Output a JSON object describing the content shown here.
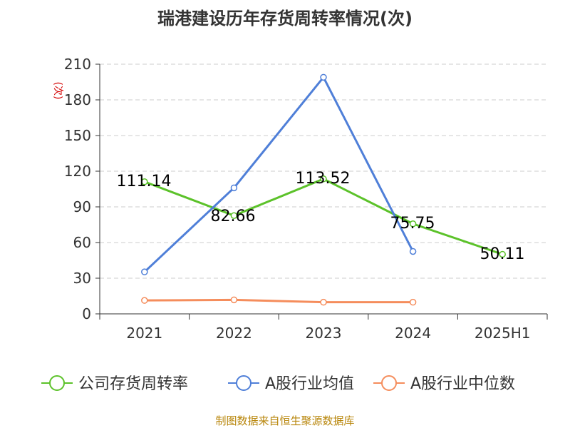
{
  "chart_data": {
    "type": "line",
    "title": "瑞港建设历年存货周转率情况(次)",
    "ylabel": "(次)",
    "categories": [
      "2021",
      "2022",
      "2023",
      "2024",
      "2025H1"
    ],
    "yticks": [
      0,
      30,
      60,
      90,
      120,
      150,
      180,
      210
    ],
    "ylim": [
      0,
      210
    ],
    "grid": true,
    "legend_position": "bottom",
    "series": [
      {
        "name": "公司存货周转率",
        "color": "#5cc22a",
        "values": [
          111.14,
          82.66,
          113.52,
          75.75,
          50.11
        ],
        "labels": [
          "111.14",
          "82.66",
          "113.52",
          "75.75",
          "50.11"
        ]
      },
      {
        "name": "A股行业均值",
        "color": "#4f7fd8",
        "values": [
          35.3,
          106.0,
          199.0,
          52.5,
          null
        ]
      },
      {
        "name": "A股行业中位数",
        "color": "#f58d5c",
        "values": [
          11.3,
          11.8,
          9.8,
          9.8,
          null
        ]
      }
    ]
  },
  "source": "制图数据来自恒生聚源数据库"
}
